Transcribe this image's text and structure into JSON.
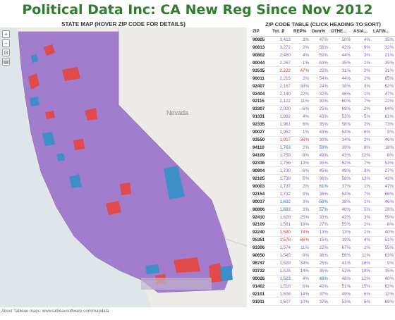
{
  "title": "Political Data Inc: CA New Reg Since Nov 2012",
  "map": {
    "heading": "STATE MAP (HOVER ZIP CODE FOR DETAILS)",
    "state_label": "Nevada",
    "credit": "About Tableau maps: www.tableausoftware.com/mapdata",
    "tools": [
      "+",
      "−",
      "⊡",
      "▤"
    ]
  },
  "table": {
    "heading": "ZIP CODE TABLE (CLICK HEADING TO SORT)",
    "columns": [
      "ZIP",
      "Tot.",
      "REP%",
      "Dem%",
      "OTHE...",
      "ASIA...",
      "LATIN..."
    ],
    "rows": [
      [
        "90805",
        "3,413",
        "3%",
        "47%",
        "50%",
        "4%",
        "35%",
        "p"
      ],
      [
        "90813",
        "3,272",
        "2%",
        "56%",
        "42%",
        "9%",
        "32%",
        "p"
      ],
      [
        "90802",
        "2,460",
        "4%",
        "52%",
        "44%",
        "3%",
        "21%",
        "p"
      ],
      [
        "90044",
        "2,267",
        "1%",
        "63%",
        "35%",
        "1%",
        "35%",
        "p"
      ],
      [
        "93535",
        "2,222",
        "47%",
        "22%",
        "31%",
        "2%",
        "31%",
        "r"
      ],
      [
        "90011",
        "2,215",
        "2%",
        "54%",
        "44%",
        "2%",
        "65%",
        "p"
      ],
      [
        "92407",
        "2,167",
        "38%",
        "24%",
        "38%",
        "3%",
        "52%",
        "p"
      ],
      [
        "92404",
        "2,140",
        "22%",
        "32%",
        "46%",
        "1%",
        "47%",
        "p"
      ],
      [
        "92115",
        "2,122",
        "11%",
        "30%",
        "60%",
        "7%",
        "22%",
        "p"
      ],
      [
        "93307",
        "2,000",
        "6%",
        "25%",
        "69%",
        "2%",
        "64%",
        "p"
      ],
      [
        "91331",
        "1,982",
        "4%",
        "43%",
        "53%",
        "5%",
        "61%",
        "p"
      ],
      [
        "92335",
        "1,981",
        "6%",
        "35%",
        "58%",
        "2%",
        "73%",
        "p"
      ],
      [
        "90027",
        "1,952",
        "1%",
        "43%",
        "54%",
        "6%",
        "9%",
        "p"
      ],
      [
        "93550",
        "1,917",
        "36%",
        "30%",
        "34%",
        "2%",
        "46%",
        "r"
      ],
      [
        "94110",
        "1,763",
        "2%",
        "59%",
        "39%",
        "8%",
        "18%",
        "b"
      ],
      [
        "94109",
        "1,759",
        "8%",
        "49%",
        "43%",
        "12%",
        "8%",
        "p"
      ],
      [
        "92336",
        "1,756",
        "13%",
        "35%",
        "52%",
        "7%",
        "53%",
        "p"
      ],
      [
        "90804",
        "1,739",
        "6%",
        "45%",
        "49%",
        "3%",
        "27%",
        "p"
      ],
      [
        "92105",
        "1,739",
        "6%",
        "36%",
        "58%",
        "13%",
        "43%",
        "p"
      ],
      [
        "90003",
        "1,737",
        "2%",
        "61%",
        "37%",
        "1%",
        "47%",
        "b"
      ],
      [
        "92154",
        "1,732",
        "9%",
        "38%",
        "54%",
        "7%",
        "68%",
        "p"
      ],
      [
        "90037",
        "1,692",
        "3%",
        "59%",
        "38%",
        "1%",
        "46%",
        "b"
      ],
      [
        "90806",
        "1,683",
        "3%",
        "57%",
        "40%",
        "5%",
        "28%",
        "b"
      ],
      [
        "92410",
        "1,626",
        "25%",
        "33%",
        "42%",
        "3%",
        "59%",
        "p"
      ],
      [
        "92109",
        "1,581",
        "18%",
        "27%",
        "55%",
        "2%",
        "8%",
        "p"
      ],
      [
        "92240",
        "1,580",
        "74%",
        "13%",
        "13%",
        "1%",
        "40%",
        "r"
      ],
      [
        "95351",
        "1,578",
        "66%",
        "15%",
        "19%",
        "4%",
        "51%",
        "r"
      ],
      [
        "93306",
        "1,574",
        "11%",
        "22%",
        "67%",
        "2%",
        "55%",
        "p"
      ],
      [
        "90650",
        "1,545",
        "8%",
        "36%",
        "56%",
        "11%",
        "63%",
        "p"
      ],
      [
        "96747",
        "1,528",
        "34%",
        "25%",
        "41%",
        "18%",
        "9%",
        "p"
      ],
      [
        "93722",
        "1,525",
        "14%",
        "35%",
        "52%",
        "14%",
        "35%",
        "p"
      ],
      [
        "90026",
        "1,523",
        "4%",
        "48%",
        "48%",
        "12%",
        "40%",
        "b"
      ],
      [
        "91402",
        "1,516",
        "6%",
        "42%",
        "51%",
        "15%",
        "62%",
        "p"
      ],
      [
        "92101",
        "1,508",
        "14%",
        "37%",
        "49%",
        "6%",
        "12%",
        "p"
      ],
      [
        "91911",
        "1,507",
        "10%",
        "37%",
        "53%",
        "5%",
        "69%",
        "p"
      ]
    ]
  },
  "colors": {
    "title": "#2e7d2e",
    "purple": "#a27ccd",
    "red": "#e04a4a",
    "blue": "#3e8ec8",
    "gray": "#d9d9d9"
  }
}
